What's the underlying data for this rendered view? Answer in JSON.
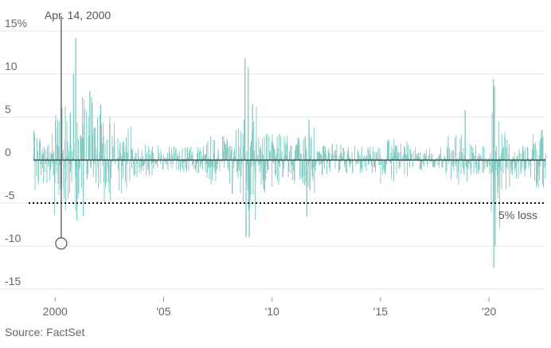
{
  "chart_data": {
    "type": "bar",
    "title": "",
    "xlabel": "",
    "ylabel": "",
    "xlim": [
      1999.0,
      2022.6
    ],
    "ylim": [
      -15,
      15
    ],
    "y_ticks": [
      {
        "value": 15,
        "label": "15%"
      },
      {
        "value": 10,
        "label": "10"
      },
      {
        "value": 5,
        "label": "5"
      },
      {
        "value": 0,
        "label": "0"
      },
      {
        "value": -5,
        "label": "-5"
      },
      {
        "value": -10,
        "label": "-10"
      },
      {
        "value": -15,
        "label": "-15"
      }
    ],
    "x_ticks": [
      {
        "value": 2000,
        "label": "2000"
      },
      {
        "value": 2005,
        "label": "'05"
      },
      {
        "value": 2010,
        "label": "'10"
      },
      {
        "value": 2015,
        "label": "'15"
      },
      {
        "value": 2020,
        "label": "'20"
      }
    ],
    "grid": true,
    "series_color": "#7dc9c1",
    "series": [
      {
        "segments": [
          {
            "x": [
              1999.0,
              1999.8
            ],
            "low": -3.5,
            "high": 3.5
          },
          {
            "x": [
              1999.8,
              2000.3
            ],
            "low": -6.5,
            "high": 5.5
          },
          {
            "x": [
              2000.3,
              2001.0
            ],
            "low": -6.0,
            "high": 7.0
          },
          {
            "x": [
              2001.0,
              2001.8
            ],
            "low": -6.5,
            "high": 7.5
          },
          {
            "x": [
              2001.8,
              2002.8
            ],
            "low": -5.0,
            "high": 5.5
          },
          {
            "x": [
              2002.8,
              2003.5
            ],
            "low": -4.0,
            "high": 4.0
          },
          {
            "x": [
              2003.5,
              2004.5
            ],
            "low": -2.0,
            "high": 2.2
          },
          {
            "x": [
              2004.5,
              2007.0
            ],
            "low": -1.6,
            "high": 1.8
          },
          {
            "x": [
              2007.0,
              2008.0
            ],
            "low": -3.0,
            "high": 2.8
          },
          {
            "x": [
              2008.0,
              2008.6
            ],
            "low": -4.0,
            "high": 4.0
          },
          {
            "x": [
              2008.6,
              2009.3
            ],
            "low": -7.5,
            "high": 7.5
          },
          {
            "x": [
              2009.3,
              2010.0
            ],
            "low": -3.8,
            "high": 4.2
          },
          {
            "x": [
              2010.0,
              2011.4
            ],
            "low": -3.0,
            "high": 3.0
          },
          {
            "x": [
              2011.4,
              2012.0
            ],
            "low": -4.0,
            "high": 4.0
          },
          {
            "x": [
              2012.0,
              2015.0
            ],
            "low": -1.8,
            "high": 1.9
          },
          {
            "x": [
              2015.0,
              2016.3
            ],
            "low": -2.8,
            "high": 2.6
          },
          {
            "x": [
              2016.3,
              2018.0
            ],
            "low": -1.4,
            "high": 1.6
          },
          {
            "x": [
              2018.0,
              2019.0
            ],
            "low": -3.0,
            "high": 3.0
          },
          {
            "x": [
              2019.0,
              2020.1
            ],
            "low": -1.8,
            "high": 1.8
          },
          {
            "x": [
              2020.1,
              2020.5
            ],
            "low": -8.0,
            "high": 7.0
          },
          {
            "x": [
              2020.5,
              2021.0
            ],
            "low": -3.5,
            "high": 3.5
          },
          {
            "x": [
              2021.0,
              2022.0
            ],
            "low": -2.2,
            "high": 2.4
          },
          {
            "x": [
              2022.0,
              2022.6
            ],
            "low": -4.0,
            "high": 3.6
          }
        ],
        "spikes": [
          {
            "x": 2000.7,
            "value": 5.5
          },
          {
            "x": 2000.85,
            "value": 10.0
          },
          {
            "x": 2000.95,
            "value": 14.2
          },
          {
            "x": 2001.0,
            "value": -7.0
          },
          {
            "x": 2001.3,
            "value": -6.5
          },
          {
            "x": 2001.6,
            "value": 8.0
          },
          {
            "x": 2002.1,
            "value": 6.5
          },
          {
            "x": 2008.75,
            "value": 11.8
          },
          {
            "x": 2008.8,
            "value": -9.0
          },
          {
            "x": 2008.9,
            "value": 10.8
          },
          {
            "x": 2008.95,
            "value": -9.0
          },
          {
            "x": 2009.1,
            "value": 6.5
          },
          {
            "x": 2011.6,
            "value": -6.6
          },
          {
            "x": 2011.7,
            "value": 4.7
          },
          {
            "x": 2020.2,
            "value": 9.4
          },
          {
            "x": 2020.22,
            "value": -12.5
          },
          {
            "x": 2020.25,
            "value": 8.6
          },
          {
            "x": 2020.28,
            "value": -10.0
          },
          {
            "x": 2018.9,
            "value": 5.8
          }
        ]
      }
    ],
    "annotations": {
      "event_label": "Apr. 14, 2000",
      "event_x": 2000.28,
      "event_value": -9.7,
      "threshold_label": "5% loss",
      "threshold_value": -5
    }
  },
  "source": "Source: FactSet"
}
